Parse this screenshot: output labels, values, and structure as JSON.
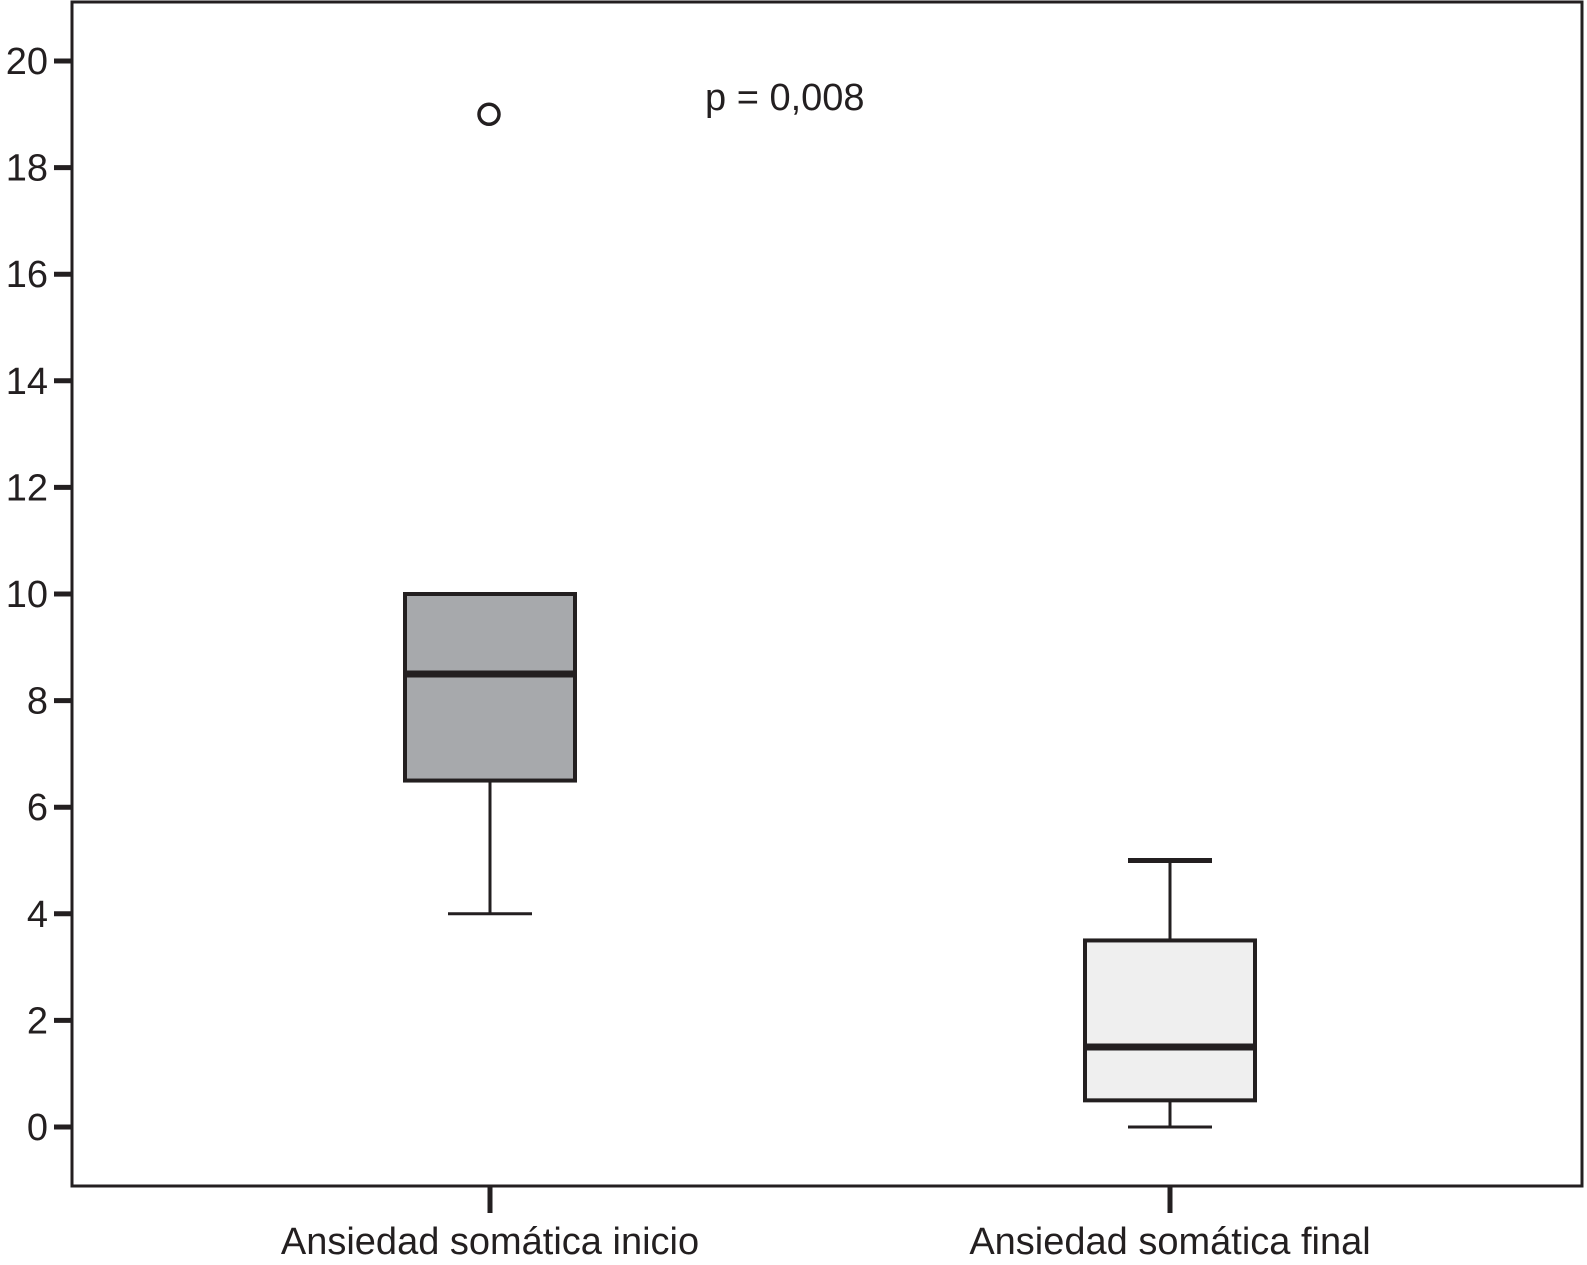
{
  "chart_data": {
    "type": "box",
    "title": "",
    "xlabel": "",
    "ylabel": "",
    "ylim": [
      -1.1,
      21.1
    ],
    "yticks": [
      0,
      2,
      4,
      6,
      8,
      10,
      12,
      14,
      16,
      18,
      20
    ],
    "tick_labels": [
      "0",
      "2",
      "4",
      "6",
      "8",
      "10",
      "12",
      "14",
      "16",
      "18",
      "20"
    ],
    "grid": false,
    "categories": [
      "Ansiedad somática inicio",
      "Ansiedad somática final"
    ],
    "boxes": [
      {
        "category": "Ansiedad somática inicio",
        "whisker_low": 4,
        "q1": 6.5,
        "median": 8.5,
        "q3": 10,
        "whisker_high": 10,
        "outliers": [
          19
        ],
        "fill": "#a7a9ac"
      },
      {
        "category": "Ansiedad somática final",
        "whisker_low": 0,
        "q1": 0.5,
        "median": 1.5,
        "q3": 3.5,
        "whisker_high": 5,
        "outliers": [],
        "fill": "#efefef"
      }
    ],
    "annotations": [
      {
        "text": "p = 0,008"
      }
    ],
    "colors": {
      "stroke": "#231f20",
      "background": "#ffffff"
    }
  }
}
